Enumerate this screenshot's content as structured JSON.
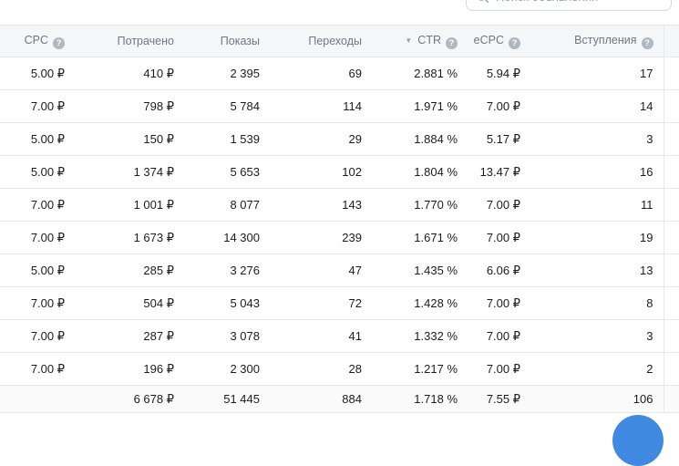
{
  "search": {
    "placeholder": "Поиск объявлений"
  },
  "table": {
    "columns": [
      {
        "key": "cpc",
        "label": "CPC",
        "help": true,
        "sorted": null
      },
      {
        "key": "spent",
        "label": "Потрачено",
        "help": false,
        "sorted": null
      },
      {
        "key": "impressions",
        "label": "Показы",
        "help": false,
        "sorted": null
      },
      {
        "key": "clicks",
        "label": "Переходы",
        "help": false,
        "sorted": null
      },
      {
        "key": "ctr",
        "label": "CTR",
        "help": true,
        "sorted": "desc"
      },
      {
        "key": "ecpc",
        "label": "eCPC",
        "help": true,
        "sorted": null
      },
      {
        "key": "joins",
        "label": "Вступления",
        "help": true,
        "sorted": null
      }
    ],
    "rows": [
      [
        "5.00 ₽",
        "410 ₽",
        "2 395",
        "69",
        "2.881 %",
        "5.94 ₽",
        "17"
      ],
      [
        "7.00 ₽",
        "798 ₽",
        "5 784",
        "114",
        "1.971 %",
        "7.00 ₽",
        "14"
      ],
      [
        "5.00 ₽",
        "150 ₽",
        "1 539",
        "29",
        "1.884 %",
        "5.17 ₽",
        "3"
      ],
      [
        "5.00 ₽",
        "1 374 ₽",
        "5 653",
        "102",
        "1.804 %",
        "13.47 ₽",
        "16"
      ],
      [
        "7.00 ₽",
        "1 001 ₽",
        "8 077",
        "143",
        "1.770 %",
        "7.00 ₽",
        "11"
      ],
      [
        "7.00 ₽",
        "1 673 ₽",
        "14 300",
        "239",
        "1.671 %",
        "7.00 ₽",
        "19"
      ],
      [
        "5.00 ₽",
        "285 ₽",
        "3 276",
        "47",
        "1.435 %",
        "6.06 ₽",
        "13"
      ],
      [
        "7.00 ₽",
        "504 ₽",
        "5 043",
        "72",
        "1.428 %",
        "7.00 ₽",
        "8"
      ],
      [
        "7.00 ₽",
        "287 ₽",
        "3 078",
        "41",
        "1.332 %",
        "7.00 ₽",
        "3"
      ],
      [
        "7.00 ₽",
        "196 ₽",
        "2 300",
        "28",
        "1.217 %",
        "7.00 ₽",
        "2"
      ]
    ],
    "totals": [
      "",
      "6 678 ₽",
      "51 445",
      "884",
      "1.718 %",
      "7.55 ₽",
      "106"
    ],
    "help_glyph": "?",
    "sort_desc_glyph": "▼"
  },
  "colors": {
    "accent_blue": "#3f8ae0",
    "header_bg": "#f5f6f8",
    "border": "#e7e8ec",
    "header_text": "#6d7885"
  }
}
